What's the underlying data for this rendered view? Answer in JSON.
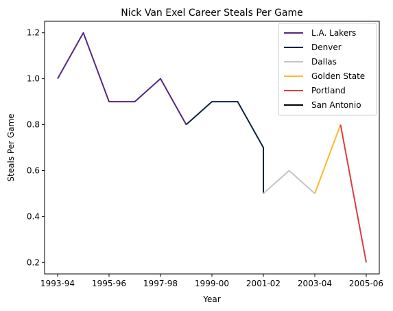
{
  "chart_data": {
    "type": "line",
    "title": "Nick Van Exel Career Steals Per Game",
    "xlabel": "Year",
    "ylabel": "Steals Per Game",
    "x_categories": [
      "1993-94",
      "1994-95",
      "1995-96",
      "1996-97",
      "1997-98",
      "1998-99",
      "1999-00",
      "2000-01",
      "2001-02",
      "2002-03",
      "2003-04",
      "2004-05",
      "2005-06"
    ],
    "x_tick_labels": [
      "1993-94",
      "1995-96",
      "1997-98",
      "1999-00",
      "2001-02",
      "2003-04",
      "2005-06"
    ],
    "y_ticks": [
      0.2,
      0.4,
      0.6,
      0.8,
      1.0,
      1.2
    ],
    "y_tick_labels": [
      "0.2",
      "0.4",
      "0.6",
      "0.8",
      "1.0",
      "1.2"
    ],
    "ylim": [
      0.15,
      1.25
    ],
    "grid": false,
    "legend_position": "top-right",
    "series": [
      {
        "name": "L.A. Lakers",
        "color": "#552583",
        "points": [
          [
            "1993-94",
            1.0
          ],
          [
            "1994-95",
            1.2
          ],
          [
            "1995-96",
            0.9
          ],
          [
            "1996-97",
            0.9
          ],
          [
            "1997-98",
            1.0
          ],
          [
            "1998-99",
            0.8
          ]
        ]
      },
      {
        "name": "Denver",
        "color": "#0E2240",
        "points": [
          [
            "1998-99",
            0.8
          ],
          [
            "1999-00",
            0.9
          ],
          [
            "2000-01",
            0.9
          ],
          [
            "2001-02",
            0.7
          ],
          [
            "2001-02",
            0.5
          ]
        ]
      },
      {
        "name": "Dallas",
        "color": "#C4C4C4",
        "points": [
          [
            "2001-02",
            0.5
          ],
          [
            "2002-03",
            0.6
          ],
          [
            "2003-04",
            0.5
          ]
        ]
      },
      {
        "name": "Golden State",
        "color": "#FDB927",
        "points": [
          [
            "2003-04",
            0.5
          ],
          [
            "2004-05",
            0.8
          ]
        ]
      },
      {
        "name": "Portland",
        "color": "#E03A3E",
        "points": [
          [
            "2004-05",
            0.8
          ],
          [
            "2005-06",
            0.2
          ]
        ]
      },
      {
        "name": "San Antonio",
        "color": "#000000",
        "points": []
      }
    ]
  }
}
